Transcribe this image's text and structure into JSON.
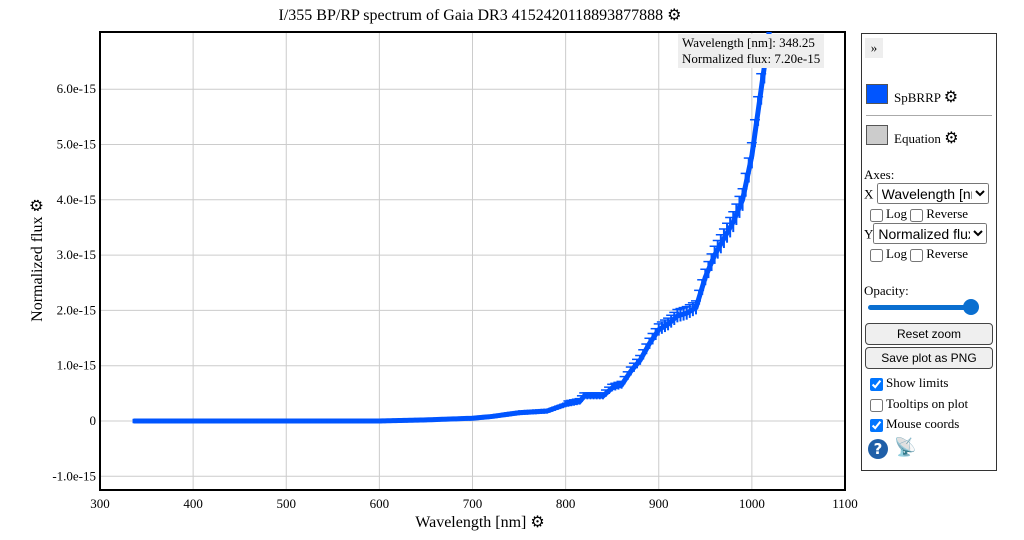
{
  "title": "I/355 BP/RP spectrum of Gaia DR3 4152420118893877888",
  "tooltip": {
    "line1": "Wavelength [nm]: 348.25",
    "line2": "Normalized flux: 7.20e-15"
  },
  "panel": {
    "collapse": "»",
    "series1": "SpBRRP",
    "series1_color": "#0055ff",
    "series2": "Equation",
    "series2_color": "#cccccc",
    "axes": "Axes:",
    "x": "X",
    "y": "Y",
    "x_select": "Wavelength [nm]",
    "y_select": "Normalized flux",
    "log": "Log",
    "reverse": "Reverse",
    "opacity": "Opacity:",
    "opacity_value": 1.0,
    "reset": "Reset zoom",
    "save": "Save plot as PNG",
    "show_limits": "Show limits",
    "tooltips": "Tooltips on plot",
    "mouse": "Mouse coords",
    "show_limits_checked": true,
    "tooltips_checked": false,
    "mouse_checked": true
  },
  "chart_data": {
    "type": "line",
    "title": "I/355 BP/RP spectrum of Gaia DR3 4152420118893877888",
    "xlabel": "Wavelength [nm]",
    "ylabel": "Normalized flux",
    "xlim": [
      300,
      1100
    ],
    "ylim": [
      -1e-15,
      7e-15
    ],
    "grid": true,
    "xticks": [
      "300",
      "400",
      "500",
      "600",
      "700",
      "800",
      "900",
      "1000",
      "1100"
    ],
    "yticks": [
      "-1.0e-15",
      "0",
      "1.0e-15",
      "2.0e-15",
      "3.0e-15",
      "4.0e-15",
      "5.0e-15",
      "6.0e-15"
    ],
    "series": [
      {
        "name": "SpBRRP",
        "color": "#0055ff",
        "x": [
          336,
          400,
          500,
          600,
          650,
          700,
          720,
          750,
          780,
          800,
          815,
          820,
          830,
          840,
          850,
          860,
          870,
          880,
          890,
          900,
          910,
          920,
          930,
          940,
          950,
          960,
          970,
          980,
          990,
          1000,
          1010,
          1020
        ],
        "y": [
          0,
          0,
          0,
          0,
          2e-17,
          5e-17,
          8e-17,
          1.5e-16,
          1.8e-16,
          3e-16,
          3.5e-16,
          4.5e-16,
          4.5e-16,
          4.5e-16,
          6e-16,
          6.5e-16,
          9e-16,
          1.1e-15,
          1.4e-15,
          1.65e-15,
          1.75e-15,
          1.9e-15,
          1.95e-15,
          2.05e-15,
          2.6e-15,
          3e-15,
          3.3e-15,
          3.6e-15,
          4e-15,
          4.8e-15,
          6e-15,
          7.2e-15
        ]
      }
    ]
  }
}
